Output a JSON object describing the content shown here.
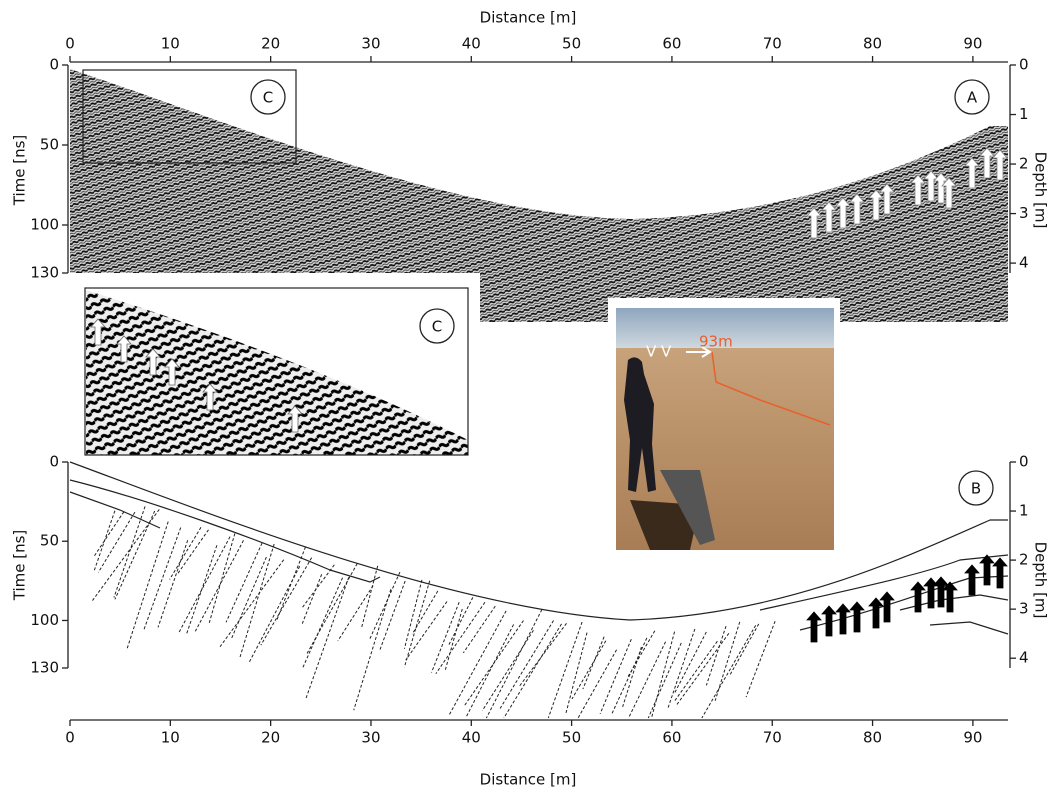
{
  "top_axis": {
    "label": "Distance [m]",
    "ticks": [
      0,
      10,
      20,
      30,
      40,
      50,
      60,
      70,
      80,
      90
    ],
    "lim": [
      0,
      93.5
    ]
  },
  "panel_a": {
    "label": "A",
    "time_axis": {
      "label": "Time [ns]",
      "ticks": [
        0,
        50,
        100,
        130
      ],
      "lim": [
        0,
        130
      ]
    },
    "depth_axis": {
      "label": "Depth [m]",
      "ticks": [
        0,
        1,
        2,
        3,
        4
      ],
      "lim": [
        0,
        4.2
      ]
    },
    "box_label": "C"
  },
  "inset_c": {
    "label": "C"
  },
  "photo": {
    "marker": "V V",
    "annotation": "93m"
  },
  "panel_b": {
    "label": "B",
    "time_axis": {
      "label": "Time [ns]",
      "ticks": [
        0,
        50,
        100,
        130
      ],
      "lim": [
        0,
        130
      ]
    },
    "depth_axis": {
      "label": "Depth [m]",
      "ticks": [
        0,
        1,
        2,
        3,
        4
      ],
      "lim": [
        0,
        4.2
      ]
    }
  },
  "bottom_axis": {
    "label": "Distance [m]",
    "ticks": [
      0,
      10,
      20,
      30,
      40,
      50,
      60,
      70,
      80,
      90
    ],
    "lim": [
      0,
      93.5
    ]
  }
}
